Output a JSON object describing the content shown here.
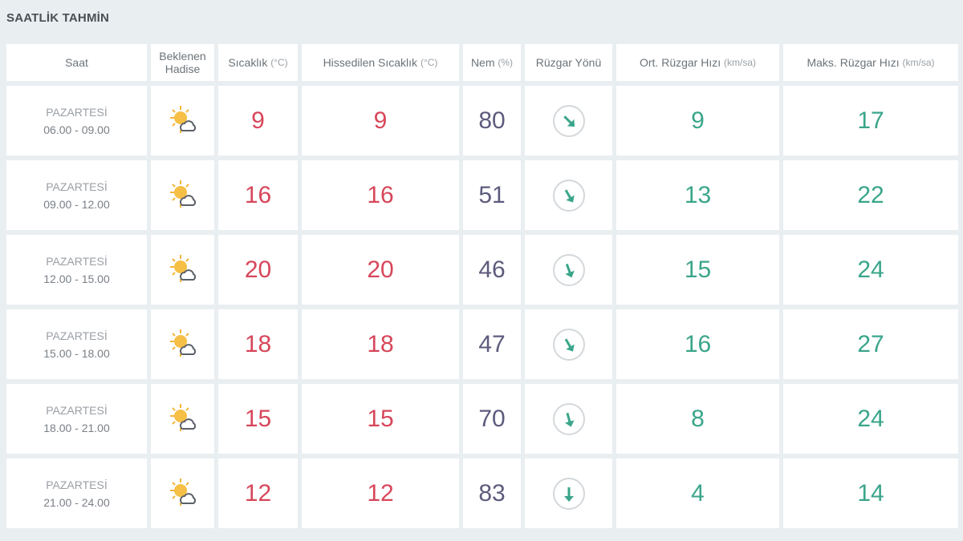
{
  "title": "SAATLİK TAHMİN",
  "headers": {
    "saat": "Saat",
    "hadise": "Beklenen Hadise",
    "sicaklik": "Sıcaklık",
    "sicaklik_unit": "(°C)",
    "hissedilen": "Hissedilen Sıcaklık",
    "hissedilen_unit": "(°C)",
    "nem": "Nem",
    "nem_unit": "(%)",
    "yon": "Rüzgar Yönü",
    "ort": "Ort. Rüzgar Hızı",
    "ort_unit": "(km/sa)",
    "maks": "Maks. Rüzgar Hızı",
    "maks_unit": "(km/sa)"
  },
  "colors": {
    "temp": "#d7465a",
    "humidity": "#5d5b7d",
    "wind": "#3aa58a"
  },
  "rows": [
    {
      "day": "PAZARTESİ",
      "time": "06.00 - 09.00",
      "icon": "partly-cloudy-icon",
      "temp": "9",
      "feels": "9",
      "humidity": "80",
      "wind_dir_deg": 135,
      "wind_avg": "9",
      "wind_max": "17"
    },
    {
      "day": "PAZARTESİ",
      "time": "09.00 - 12.00",
      "icon": "partly-cloudy-icon",
      "temp": "16",
      "feels": "16",
      "humidity": "51",
      "wind_dir_deg": 150,
      "wind_avg": "13",
      "wind_max": "22"
    },
    {
      "day": "PAZARTESİ",
      "time": "12.00 - 15.00",
      "icon": "partly-cloudy-icon",
      "temp": "20",
      "feels": "20",
      "humidity": "46",
      "wind_dir_deg": 160,
      "wind_avg": "15",
      "wind_max": "24"
    },
    {
      "day": "PAZARTESİ",
      "time": "15.00 - 18.00",
      "icon": "partly-cloudy-icon",
      "temp": "18",
      "feels": "18",
      "humidity": "47",
      "wind_dir_deg": 150,
      "wind_avg": "16",
      "wind_max": "27"
    },
    {
      "day": "PAZARTESİ",
      "time": "18.00 - 21.00",
      "icon": "partly-cloudy-icon",
      "temp": "15",
      "feels": "15",
      "humidity": "70",
      "wind_dir_deg": 165,
      "wind_avg": "8",
      "wind_max": "24"
    },
    {
      "day": "PAZARTESİ",
      "time": "21.00 - 24.00",
      "icon": "partly-cloudy-icon",
      "temp": "12",
      "feels": "12",
      "humidity": "83",
      "wind_dir_deg": 180,
      "wind_avg": "4",
      "wind_max": "14"
    }
  ]
}
